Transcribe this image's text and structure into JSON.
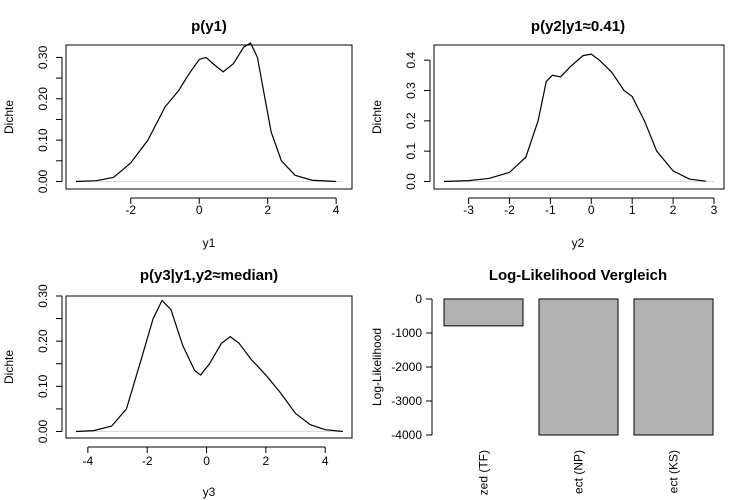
{
  "chart_data": [
    {
      "type": "line",
      "title": "p(y1)",
      "xlabel": "y1",
      "ylabel": "Dichte",
      "xlim": [
        -3.6,
        4.2
      ],
      "ylim": [
        0,
        0.33
      ],
      "x_ticks": [
        -2,
        0,
        2,
        4
      ],
      "y_ticks": [
        0.0,
        0.05,
        0.1,
        0.15,
        0.2,
        0.25,
        0.3
      ],
      "y_tick_labels": [
        "0.00",
        "",
        "0.10",
        "",
        "0.20",
        "",
        "0.30"
      ],
      "series": [
        {
          "x": [
            -3.6,
            -3.0,
            -2.5,
            -2.0,
            -1.5,
            -1.0,
            -0.6,
            -0.3,
            0.0,
            0.2,
            0.4,
            0.7,
            1.0,
            1.3,
            1.5,
            1.7,
            1.9,
            2.1,
            2.4,
            2.8,
            3.3,
            4.0
          ],
          "y": [
            0.0,
            0.002,
            0.01,
            0.045,
            0.1,
            0.18,
            0.22,
            0.26,
            0.295,
            0.3,
            0.285,
            0.265,
            0.285,
            0.325,
            0.335,
            0.3,
            0.21,
            0.12,
            0.05,
            0.015,
            0.003,
            0.0
          ]
        }
      ]
    },
    {
      "type": "line",
      "title": "p(y2|y1≈0.41)",
      "xlabel": "y2",
      "ylabel": "Dichte",
      "xlim": [
        -3.6,
        3.0
      ],
      "ylim": [
        0,
        0.45
      ],
      "x_ticks": [
        -3,
        -2,
        -1,
        0,
        1,
        2,
        3
      ],
      "y_ticks": [
        0.0,
        0.1,
        0.2,
        0.3,
        0.4
      ],
      "y_tick_labels": [
        "0.0",
        "0.1",
        "0.2",
        "0.3",
        "0.4"
      ],
      "series": [
        {
          "x": [
            -3.6,
            -3.0,
            -2.5,
            -2.0,
            -1.6,
            -1.3,
            -1.1,
            -0.95,
            -0.75,
            -0.5,
            -0.2,
            0.0,
            0.2,
            0.5,
            0.8,
            1.0,
            1.3,
            1.6,
            2.0,
            2.4,
            2.8
          ],
          "y": [
            0.0,
            0.003,
            0.01,
            0.03,
            0.08,
            0.2,
            0.33,
            0.35,
            0.345,
            0.38,
            0.415,
            0.42,
            0.4,
            0.36,
            0.3,
            0.28,
            0.2,
            0.1,
            0.035,
            0.008,
            0.001
          ]
        }
      ]
    },
    {
      "type": "line",
      "title": "p(y3|y1,y2≈median)",
      "xlabel": "y3",
      "ylabel": "Dichte",
      "xlim": [
        -4.4,
        4.6
      ],
      "ylim": [
        0,
        0.3
      ],
      "x_ticks": [
        -4,
        -2,
        0,
        2,
        4
      ],
      "y_ticks": [
        0.0,
        0.05,
        0.1,
        0.15,
        0.2,
        0.25,
        0.3
      ],
      "y_tick_labels": [
        "0.00",
        "",
        "0.10",
        "",
        "0.20",
        "",
        "0.30"
      ],
      "series": [
        {
          "x": [
            -4.4,
            -3.8,
            -3.2,
            -2.7,
            -2.2,
            -1.8,
            -1.5,
            -1.2,
            -0.8,
            -0.4,
            -0.2,
            0.1,
            0.5,
            0.8,
            1.1,
            1.5,
            2.0,
            2.5,
            3.0,
            3.5,
            4.0,
            4.6
          ],
          "y": [
            0.0,
            0.002,
            0.012,
            0.05,
            0.16,
            0.25,
            0.29,
            0.27,
            0.19,
            0.135,
            0.125,
            0.15,
            0.195,
            0.21,
            0.195,
            0.16,
            0.125,
            0.085,
            0.04,
            0.015,
            0.004,
            0.0
          ]
        }
      ]
    },
    {
      "type": "bar",
      "title": "Log-Likelihood Vergleich",
      "ylabel": "Log-Likelihood",
      "ylim": [
        -4000,
        0
      ],
      "y_ticks": [
        0,
        -1000,
        -2000,
        -3000,
        -4000
      ],
      "y_tick_labels": [
        "0",
        "-1000",
        "-2000",
        "-3000",
        "-4000"
      ],
      "categories": [
        "zed (TF)",
        "ect (NP)",
        "ect (KS)"
      ],
      "values": [
        -790,
        -4000,
        -4000
      ],
      "bar_color": "#b3b3b3"
    }
  ]
}
